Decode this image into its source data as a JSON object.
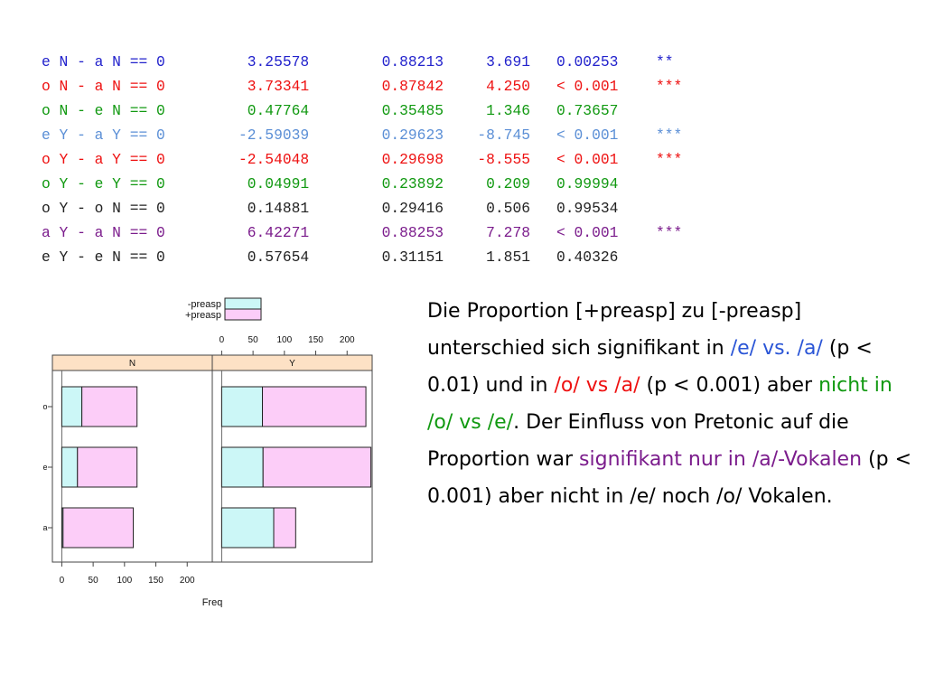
{
  "colors": {
    "blue": "#2222cc",
    "red": "#ee1111",
    "green": "#119911",
    "lightblue": "#5b8fd6",
    "purple": "#7b1c8c",
    "black": "#222222",
    "preasp_fill": "#ccf7f7",
    "plus_preasp_fill": "#fccdf8",
    "strip_fill": "#fde1c5"
  },
  "stats_table": {
    "rows": [
      {
        "comparison": "e N - a N == 0",
        "estimate": " 3.25578",
        "std_error": "0.88213",
        "t_value": "3.691",
        "p_value": "0.00253",
        "sig": "**",
        "color": "blue"
      },
      {
        "comparison": "o N - a N == 0",
        "estimate": " 3.73341",
        "std_error": "0.87842",
        "t_value": "4.250",
        "p_value": "< 0.001",
        "sig": "***",
        "color": "red"
      },
      {
        "comparison": "o N - e N == 0",
        "estimate": " 0.47764",
        "std_error": "0.35485",
        "t_value": "1.346",
        "p_value": "0.73657",
        "sig": "",
        "color": "green"
      },
      {
        "comparison": "e Y - a Y == 0",
        "estimate": "-2.59039",
        "std_error": "0.29623",
        "t_value": "-8.745",
        "p_value": "< 0.001",
        "sig": "***",
        "color": "lightblue"
      },
      {
        "comparison": "o Y - a Y == 0",
        "estimate": "-2.54048",
        "std_error": "0.29698",
        "t_value": "-8.555",
        "p_value": "< 0.001",
        "sig": "***",
        "color": "red"
      },
      {
        "comparison": "o Y - e Y == 0",
        "estimate": " 0.04991",
        "std_error": "0.23892",
        "t_value": "0.209",
        "p_value": "0.99994",
        "sig": "",
        "color": "green"
      },
      {
        "comparison": "o Y - o N == 0",
        "estimate": " 0.14881",
        "std_error": "0.29416",
        "t_value": "0.506",
        "p_value": "0.99534",
        "sig": "",
        "color": "black"
      },
      {
        "comparison": "a Y - a N == 0",
        "estimate": " 6.42271",
        "std_error": "0.88253",
        "t_value": "7.278",
        "p_value": "< 0.001",
        "sig": "***",
        "color": "purple"
      },
      {
        "comparison": "e Y - e N == 0",
        "estimate": " 0.57654",
        "std_error": "0.31151",
        "t_value": "1.851",
        "p_value": "0.40326",
        "sig": "",
        "color": "black"
      }
    ]
  },
  "chart_data": {
    "type": "bar",
    "orientation": "horizontal",
    "stacked": true,
    "panels": [
      "N",
      "Y"
    ],
    "categories": [
      "o",
      "e",
      "a"
    ],
    "series": [
      {
        "name": "-preasp",
        "values": {
          "N": [
            32,
            25,
            2
          ],
          "Y": [
            65,
            66,
            83
          ]
        }
      },
      {
        "name": "+preasp",
        "values": {
          "N": [
            88,
            95,
            112
          ],
          "Y": [
            165,
            172,
            35
          ]
        }
      }
    ],
    "xlabel": "Freq",
    "xticks": [
      0,
      50,
      100,
      150,
      200
    ],
    "xlim": [
      -15,
      240
    ],
    "legend_position": "top"
  },
  "caption": {
    "t1": "Die Proportion [+preasp] zu [-preasp] unterschied sich signifikant in ",
    "t2": "/e/ vs. /a/",
    "t3": " (p < 0.01) und in ",
    "t4": "/o/ vs /a/",
    "t5": " (p < 0.001) aber ",
    "t6": "nicht in /o/ vs /e/",
    "t7": ".  Der Einfluss von Pretonic auf die Proportion war ",
    "t8": "signifikant nur in /a/-Vokalen",
    "t9": " (p < 0.001) aber nicht in /e/ noch /o/ Vokalen."
  }
}
